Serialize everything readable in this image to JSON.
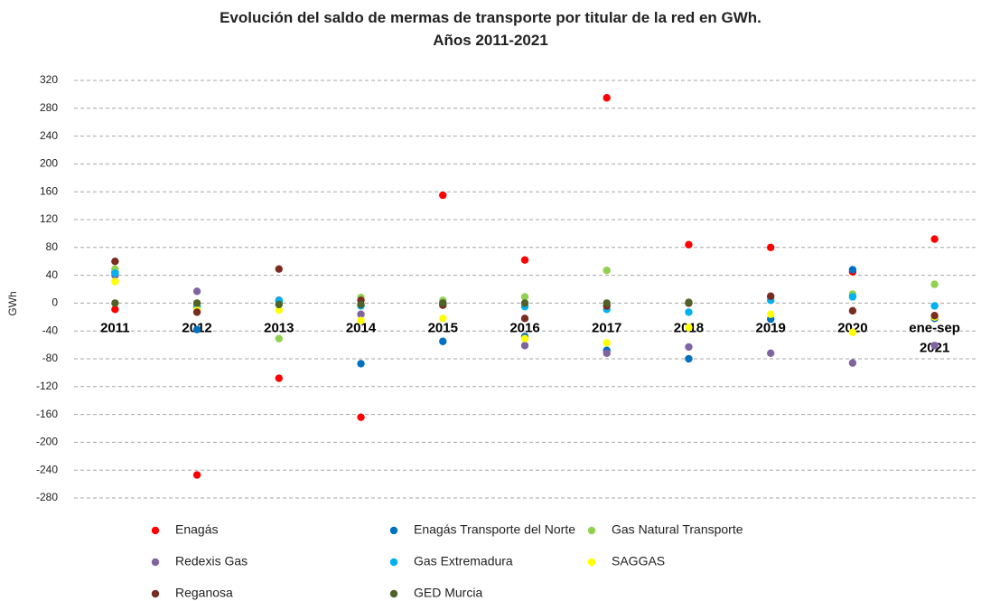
{
  "chart_data": {
    "type": "scatter",
    "title": "Evolución del saldo de mermas de transporte por titular de la red en GWh. Años 2011-2021",
    "y_label": "GWh",
    "categories": [
      "2011",
      "2012",
      "2013",
      "2014",
      "2015",
      "2016",
      "2017",
      "2018",
      "2019",
      "2020",
      "ene-sep 2021"
    ],
    "ylim": [
      -280,
      320
    ],
    "yticks": [
      -280,
      -240,
      -200,
      -160,
      -120,
      -80,
      -40,
      0,
      40,
      80,
      120,
      160,
      200,
      240,
      280,
      320
    ],
    "grid": true,
    "legend": "bottom",
    "series": [
      {
        "name": "Enagás",
        "color": "#ff0000",
        "values": [
          -9,
          -247,
          -108,
          -164,
          155,
          62,
          295,
          84,
          80,
          45,
          92
        ]
      },
      {
        "name": "Enagás Transporte del Norte",
        "color": "#0070c0",
        "values": [
          44,
          -38,
          4,
          -87,
          -55,
          -48,
          -68,
          -80,
          -23,
          48,
          -22
        ]
      },
      {
        "name": "Gas Natural Transporte",
        "color": "#92d050",
        "values": [
          49,
          -3,
          -51,
          8,
          4,
          9,
          47,
          0,
          7,
          13,
          27
        ]
      },
      {
        "name": "Redexis Gas",
        "color": "#8064a2",
        "values": [
          40,
          17,
          2,
          -16,
          0,
          -61,
          -72,
          -63,
          -72,
          -86,
          -61
        ]
      },
      {
        "name": "Gas Extremadura",
        "color": "#00b0f0",
        "values": [
          43,
          -5,
          3,
          -4,
          0,
          -5,
          -9,
          -13,
          4,
          9,
          -4
        ]
      },
      {
        "name": "SAGGAS",
        "color": "#ffff00",
        "values": [
          31,
          -10,
          -10,
          -25,
          -22,
          -51,
          -57,
          -35,
          -16,
          -42,
          -20
        ]
      },
      {
        "name": "Reganosa",
        "color": "#7b2c20",
        "values": [
          60,
          -13,
          49,
          4,
          -3,
          -22,
          -4,
          0,
          10,
          -11,
          -18
        ]
      },
      {
        "name": "GED Murcia",
        "color": "#4f6228",
        "values": [
          0,
          0,
          -2,
          -2,
          0,
          0,
          0,
          1,
          null,
          null,
          null
        ]
      }
    ]
  }
}
